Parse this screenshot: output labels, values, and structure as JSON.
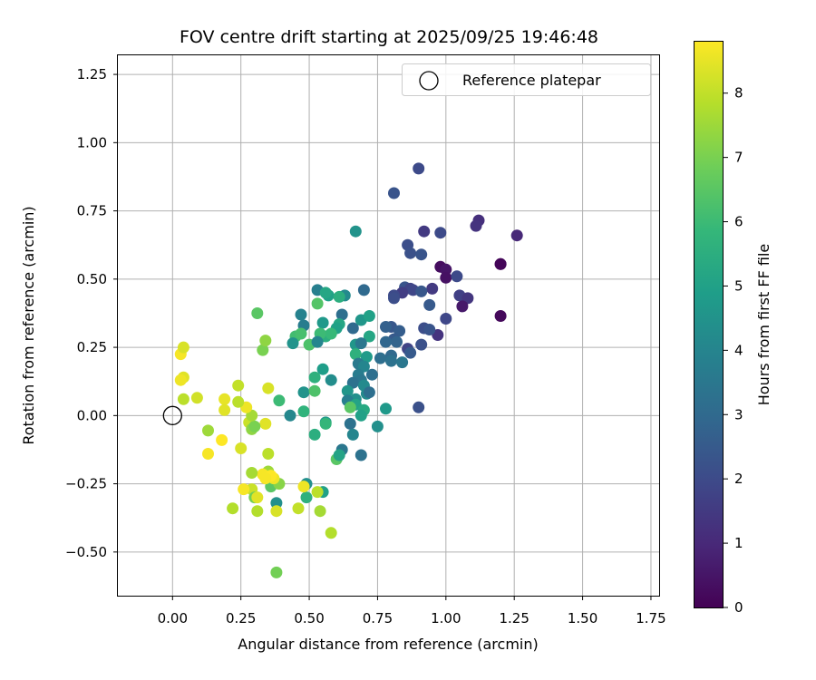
{
  "chart_data": {
    "type": "scatter",
    "title": "FOV centre drift starting at 2025/09/25 19:46:48",
    "xlabel": "Angular distance from reference (arcmin)",
    "ylabel": "Rotation from reference (arcmin)",
    "xlim": [
      -0.2,
      1.78
    ],
    "ylim": [
      -0.66,
      1.32
    ],
    "xticks": [
      "0.00",
      "0.25",
      "0.50",
      "0.75",
      "1.00",
      "1.25",
      "1.50",
      "1.75"
    ],
    "yticks": [
      "−0.50",
      "−0.25",
      "0.00",
      "0.25",
      "0.50",
      "0.75",
      "1.00",
      "1.25"
    ],
    "grid": true,
    "legend": {
      "placement": "top-right",
      "label": "Reference platepar",
      "marker": "open-circle"
    },
    "reference_point": {
      "x": 0.0,
      "y": 0.0
    },
    "colorbar": {
      "label": "Hours from first FF file",
      "min": 0,
      "max": 8.8,
      "ticks": [
        "0",
        "1",
        "2",
        "3",
        "4",
        "5",
        "6",
        "7",
        "8"
      ],
      "colormap": "viridis"
    },
    "series": [
      {
        "points": [
          [
            0.9,
            0.905,
            2.0
          ],
          [
            0.81,
            0.815,
            2.3
          ],
          [
            0.67,
            0.675,
            4.5
          ],
          [
            1.12,
            0.715,
            1.2
          ],
          [
            1.11,
            0.695,
            1.3
          ],
          [
            0.92,
            0.675,
            1.5
          ],
          [
            0.98,
            0.67,
            2.0
          ],
          [
            1.26,
            0.66,
            1.0
          ],
          [
            0.86,
            0.625,
            2.1
          ],
          [
            0.87,
            0.595,
            2.2
          ],
          [
            0.91,
            0.59,
            2.3
          ],
          [
            1.2,
            0.555,
            0.0
          ],
          [
            1.2,
            0.555,
            0.1
          ],
          [
            0.98,
            0.545,
            0.3
          ],
          [
            1.0,
            0.535,
            0.5
          ],
          [
            1.0,
            0.505,
            0.4
          ],
          [
            1.04,
            0.51,
            2.0
          ],
          [
            0.85,
            0.47,
            2.3
          ],
          [
            0.87,
            0.465,
            1.8
          ],
          [
            0.88,
            0.46,
            1.9
          ],
          [
            0.95,
            0.465,
            1.5
          ],
          [
            0.91,
            0.455,
            2.4
          ],
          [
            0.84,
            0.45,
            1.6
          ],
          [
            0.81,
            0.44,
            2.0
          ],
          [
            0.81,
            0.43,
            2.1
          ],
          [
            1.05,
            0.44,
            1.7
          ],
          [
            1.08,
            0.43,
            1.4
          ],
          [
            1.06,
            0.4,
            0.6
          ],
          [
            0.94,
            0.405,
            2.5
          ],
          [
            1.2,
            0.365,
            0.2
          ],
          [
            1.0,
            0.355,
            1.9
          ],
          [
            0.97,
            0.295,
            1.3
          ],
          [
            0.92,
            0.32,
            2.1
          ],
          [
            0.94,
            0.315,
            2.3
          ],
          [
            0.86,
            0.245,
            1.8
          ],
          [
            0.91,
            0.26,
            2.2
          ],
          [
            0.87,
            0.23,
            2.5
          ],
          [
            0.8,
            0.325,
            2.4
          ],
          [
            0.83,
            0.31,
            2.6
          ],
          [
            0.78,
            0.325,
            2.7
          ],
          [
            0.81,
            0.28,
            2.5
          ],
          [
            0.82,
            0.27,
            2.8
          ],
          [
            0.78,
            0.27,
            2.9
          ],
          [
            0.8,
            0.22,
            3.0
          ],
          [
            0.76,
            0.21,
            3.2
          ],
          [
            0.8,
            0.2,
            3.3
          ],
          [
            0.84,
            0.195,
            3.5
          ],
          [
            0.73,
            0.15,
            3.2
          ],
          [
            0.7,
            0.46,
            3.0
          ],
          [
            0.63,
            0.44,
            4.2
          ],
          [
            0.53,
            0.46,
            3.8
          ],
          [
            0.57,
            0.44,
            5.0
          ],
          [
            0.61,
            0.435,
            5.5
          ],
          [
            0.56,
            0.45,
            5.2
          ],
          [
            0.66,
            0.32,
            3.0
          ],
          [
            0.62,
            0.37,
            3.2
          ],
          [
            0.69,
            0.35,
            4.6
          ],
          [
            0.72,
            0.365,
            5.0
          ],
          [
            0.47,
            0.37,
            3.9
          ],
          [
            0.48,
            0.33,
            3.7
          ],
          [
            0.55,
            0.34,
            4.7
          ],
          [
            0.61,
            0.335,
            5.2
          ],
          [
            0.6,
            0.32,
            5.0
          ],
          [
            0.56,
            0.29,
            5.5
          ],
          [
            0.58,
            0.3,
            5.9
          ],
          [
            0.54,
            0.3,
            6.0
          ],
          [
            0.45,
            0.29,
            6.1
          ],
          [
            0.47,
            0.3,
            6.2
          ],
          [
            0.5,
            0.26,
            6.3
          ],
          [
            0.44,
            0.265,
            4.5
          ],
          [
            0.53,
            0.27,
            4.0
          ],
          [
            0.72,
            0.29,
            5.2
          ],
          [
            0.67,
            0.26,
            4.6
          ],
          [
            0.69,
            0.265,
            3.5
          ],
          [
            0.67,
            0.225,
            5.6
          ],
          [
            0.71,
            0.215,
            4.8
          ],
          [
            0.68,
            0.19,
            3.6
          ],
          [
            0.7,
            0.18,
            4.0
          ],
          [
            0.68,
            0.15,
            3.7
          ],
          [
            0.69,
            0.13,
            3.5
          ],
          [
            0.55,
            0.17,
            4.9
          ],
          [
            0.58,
            0.13,
            4.3
          ],
          [
            0.52,
            0.14,
            5.6
          ],
          [
            0.66,
            0.12,
            3.3
          ],
          [
            0.7,
            0.11,
            4.2
          ],
          [
            0.48,
            0.085,
            4.5
          ],
          [
            0.52,
            0.09,
            6.3
          ],
          [
            0.64,
            0.09,
            4.6
          ],
          [
            0.71,
            0.08,
            4.2
          ],
          [
            0.72,
            0.085,
            3.2
          ],
          [
            0.67,
            0.06,
            4.4
          ],
          [
            0.64,
            0.055,
            3.8
          ],
          [
            0.67,
            0.04,
            5.1
          ],
          [
            0.65,
            0.03,
            6.5
          ],
          [
            0.7,
            0.02,
            5.3
          ],
          [
            0.69,
            0.0,
            5.0
          ],
          [
            0.65,
            -0.03,
            3.3
          ],
          [
            0.56,
            -0.025,
            4.7
          ],
          [
            0.56,
            -0.03,
            5.8
          ],
          [
            0.43,
            0.0,
            4.1
          ],
          [
            0.48,
            0.015,
            5.7
          ],
          [
            0.78,
            0.025,
            4.7
          ],
          [
            0.75,
            -0.04,
            4.4
          ],
          [
            0.66,
            -0.07,
            4.0
          ],
          [
            0.52,
            -0.07,
            5.5
          ],
          [
            0.62,
            -0.125,
            3.5
          ],
          [
            0.69,
            -0.145,
            3.3
          ],
          [
            0.9,
            0.03,
            2.2
          ],
          [
            0.39,
            0.055,
            6.0
          ],
          [
            0.31,
            0.375,
            6.5
          ],
          [
            0.33,
            0.24,
            7.0
          ],
          [
            0.34,
            0.275,
            7.3
          ],
          [
            0.53,
            0.41,
            6.4
          ],
          [
            0.6,
            -0.16,
            6.5
          ],
          [
            0.61,
            -0.145,
            5.1
          ],
          [
            0.49,
            -0.25,
            4.4
          ],
          [
            0.38,
            -0.32,
            4.4
          ],
          [
            0.55,
            -0.28,
            5.0
          ],
          [
            0.49,
            -0.3,
            5.6
          ],
          [
            0.53,
            -0.28,
            7.9
          ],
          [
            0.48,
            -0.26,
            8.6
          ],
          [
            0.36,
            -0.26,
            6.5
          ],
          [
            0.39,
            -0.25,
            7.2
          ],
          [
            0.35,
            -0.205,
            7.5
          ],
          [
            0.37,
            -0.23,
            8.6
          ],
          [
            0.33,
            -0.215,
            8.7
          ],
          [
            0.36,
            -0.22,
            8.8
          ],
          [
            0.34,
            -0.23,
            8.7
          ],
          [
            0.35,
            -0.14,
            7.9
          ],
          [
            0.29,
            -0.21,
            7.6
          ],
          [
            0.29,
            -0.27,
            8.1
          ],
          [
            0.3,
            -0.3,
            6.9
          ],
          [
            0.31,
            -0.3,
            8.4
          ],
          [
            0.31,
            -0.35,
            7.8
          ],
          [
            0.38,
            -0.35,
            8.3
          ],
          [
            0.46,
            -0.34,
            8.0
          ],
          [
            0.54,
            -0.35,
            7.6
          ],
          [
            0.58,
            -0.43,
            7.8
          ],
          [
            0.38,
            -0.575,
            6.9
          ],
          [
            0.22,
            -0.34,
            7.8
          ],
          [
            0.26,
            -0.27,
            8.7
          ],
          [
            0.25,
            -0.12,
            8.3
          ],
          [
            0.34,
            -0.03,
            8.4
          ],
          [
            0.28,
            -0.025,
            8.1
          ],
          [
            0.29,
            -0.05,
            7.3
          ],
          [
            0.3,
            -0.04,
            7.0
          ],
          [
            0.29,
            0.0,
            7.6
          ],
          [
            0.27,
            0.03,
            8.6
          ],
          [
            0.24,
            0.05,
            7.9
          ],
          [
            0.24,
            0.11,
            8.0
          ],
          [
            0.35,
            0.1,
            8.3
          ],
          [
            0.19,
            0.06,
            8.5
          ],
          [
            0.19,
            0.02,
            8.4
          ],
          [
            0.18,
            -0.09,
            8.8
          ],
          [
            0.13,
            -0.14,
            8.7
          ],
          [
            0.13,
            -0.055,
            7.5
          ],
          [
            0.09,
            0.065,
            8.2
          ],
          [
            0.04,
            0.06,
            7.9
          ],
          [
            0.04,
            0.14,
            8.4
          ],
          [
            0.03,
            0.13,
            8.6
          ],
          [
            0.03,
            0.225,
            8.7
          ],
          [
            0.04,
            0.25,
            8.3
          ]
        ]
      }
    ]
  }
}
